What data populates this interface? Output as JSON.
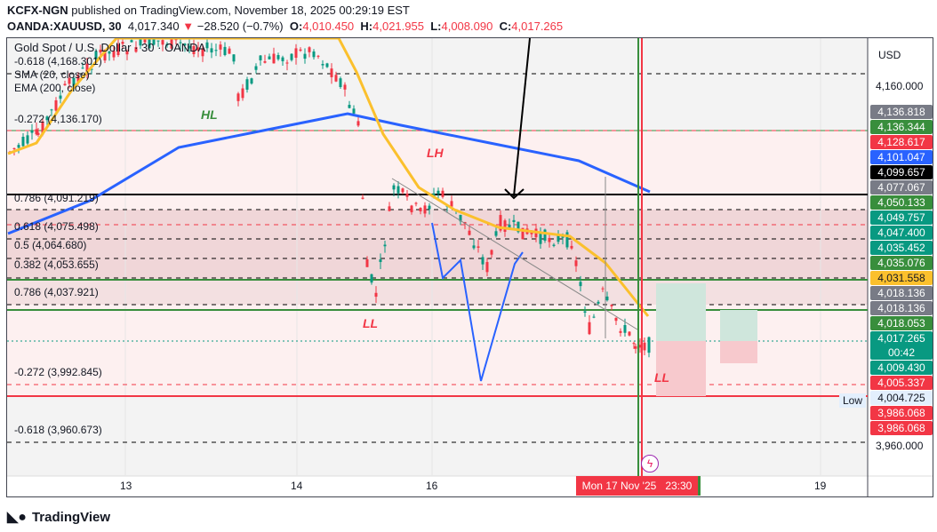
{
  "header": {
    "publisher": "KCFX-NGN",
    "published_text": "published on TradingView.com, November 18, 2025 00:29:19 EST",
    "symbol": "OANDA:XAUUSD, 30",
    "price": "4,017.340",
    "change": "−28.520 (−0.7%)",
    "o_label": "O:",
    "o": "4,010.450",
    "h_label": "H:",
    "h": "4,021.955",
    "l_label": "L:",
    "l": "4,008.090",
    "c_label": "C:",
    "c": "4,017.265"
  },
  "legend": {
    "title": "Gold Spot / U.S. Dollar · 30 · OANDA",
    "sma": "SMA (20, close)",
    "ema": "EMA (200, close)"
  },
  "fib_labels": [
    "-0.618 (4,168.301)",
    "-0.272 (4,136.170)",
    "0.786 (4,091.219)",
    "0.618 (4,075.498)",
    "0.5 (4,064.680)",
    "0.382 (4,053.655)",
    "0.786 (4,037.921)",
    "-0.272 (3,992.845)",
    "-0.618 (3,960.673)"
  ],
  "annotations": {
    "hl": "HL",
    "lh": "LH",
    "ll1": "LL",
    "ll2": "LL",
    "low": "Low"
  },
  "price_axis": {
    "currency": "USD",
    "top_tick": "4,160.000",
    "bottom_tick": "3,960.000",
    "labels": [
      {
        "v": "4,136.818",
        "c": "#787b86"
      },
      {
        "v": "4,136.344",
        "c": "#388e3c"
      },
      {
        "v": "4,128.617",
        "c": "#f23645"
      },
      {
        "v": "4,101.047",
        "c": "#2962ff"
      },
      {
        "v": "4,099.657",
        "c": "#000000"
      },
      {
        "v": "4,077.067",
        "c": "#787b86"
      },
      {
        "v": "4,050.133",
        "c": "#388e3c"
      },
      {
        "v": "4,049.757",
        "c": "#089981"
      },
      {
        "v": "4,047.400",
        "c": "#089981"
      },
      {
        "v": "4,035.452",
        "c": "#089981"
      },
      {
        "v": "4,035.076",
        "c": "#388e3c"
      },
      {
        "v": "4,031.558",
        "c": "#fbc02d"
      },
      {
        "v": "4,018.136",
        "c": "#787b86"
      },
      {
        "v": "4,018.136",
        "c": "#787b86"
      },
      {
        "v": "4,018.053",
        "c": "#388e3c"
      },
      {
        "v": "4,017.265",
        "c": "#089981"
      },
      {
        "v": "4,009.430",
        "c": "#089981"
      },
      {
        "v": "4,005.337",
        "c": "#f23645"
      },
      {
        "v": "4,004.725",
        "c": "#e3effd"
      },
      {
        "v": "3,986.068",
        "c": "#f23645"
      },
      {
        "v": "3,986.068",
        "c": "#f23645"
      }
    ],
    "countdown": "00:42"
  },
  "time_axis": {
    "t13": "13",
    "t14": "14",
    "t16": "16",
    "cursor": "Mon 17 Nov '25",
    "cursor_time": "23:30",
    "t19": "19"
  },
  "brand": "TradingView"
}
